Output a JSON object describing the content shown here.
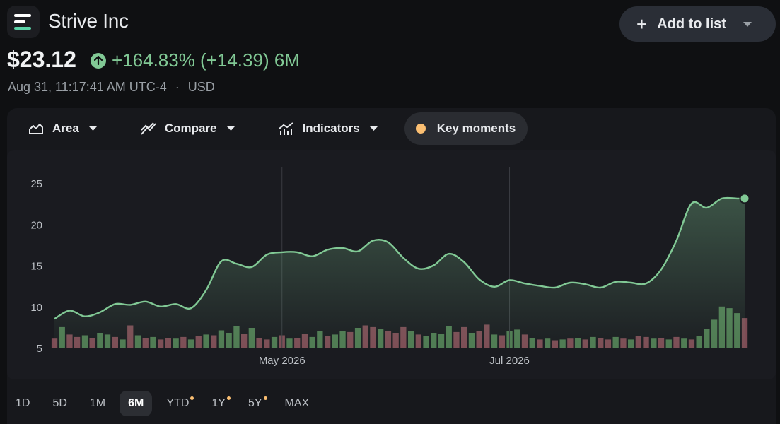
{
  "header": {
    "company": "Strive Inc",
    "add_label": "Add to list",
    "price": "$23.12",
    "change_text": "+164.83% (+14.39) 6M",
    "timestamp": "Aug 31, 11:17:41 AM UTC-4",
    "currency": "USD",
    "up_color": "#81c995"
  },
  "toolbar": {
    "items": [
      {
        "label": "Area",
        "icon": "area-chart-icon"
      },
      {
        "label": "Compare",
        "icon": "compare-icon"
      },
      {
        "label": "Indicators",
        "icon": "indicators-icon"
      }
    ],
    "key_moments": "Key moments"
  },
  "ranges": [
    {
      "label": "1D",
      "selected": false,
      "badge": false
    },
    {
      "label": "5D",
      "selected": false,
      "badge": false
    },
    {
      "label": "1M",
      "selected": false,
      "badge": false
    },
    {
      "label": "6M",
      "selected": true,
      "badge": false
    },
    {
      "label": "YTD",
      "selected": false,
      "badge": true
    },
    {
      "label": "1Y",
      "selected": false,
      "badge": true
    },
    {
      "label": "5Y",
      "selected": false,
      "badge": true
    },
    {
      "label": "MAX",
      "selected": false,
      "badge": false
    }
  ],
  "chart_data": {
    "type": "area",
    "title": "",
    "xlabel": "",
    "ylabel": "",
    "ylim": [
      5,
      25
    ],
    "yticks": [
      25,
      20,
      15,
      10,
      5
    ],
    "xticks": [
      {
        "label": "May 2026",
        "x": 60
      },
      {
        "label": "Jul 2026",
        "x": 120
      }
    ],
    "grid": false,
    "line_color": "#81c995",
    "volume_up_color": "#4f7a52",
    "volume_down_color": "#7d4c55",
    "x": [
      0,
      4,
      8,
      12,
      16,
      20,
      24,
      28,
      32,
      36,
      40,
      44,
      48,
      52,
      56,
      60,
      64,
      68,
      72,
      76,
      80,
      84,
      88,
      92,
      96,
      100,
      104,
      108,
      112,
      116,
      120,
      124,
      128,
      132,
      136,
      140,
      144,
      148,
      152,
      156,
      160,
      164,
      168,
      172,
      176,
      180,
      182
    ],
    "close": [
      8.5,
      9.5,
      8.8,
      9.3,
      10.3,
      10.2,
      10.6,
      10.0,
      10.3,
      9.8,
      12.0,
      15.5,
      15.2,
      14.8,
      16.3,
      16.6,
      16.6,
      16.1,
      16.9,
      17.1,
      16.7,
      18.0,
      17.8,
      15.9,
      14.6,
      15.0,
      16.4,
      15.4,
      13.3,
      12.4,
      13.2,
      12.8,
      12.5,
      12.3,
      12.9,
      12.7,
      12.3,
      13.0,
      12.9,
      12.8,
      14.5,
      18.0,
      22.5,
      22.0,
      23.12,
      23.12,
      23.12
    ],
    "volume": [
      {
        "x": 0,
        "v": 6.1,
        "up": false
      },
      {
        "x": 2,
        "v": 7.5,
        "up": true
      },
      {
        "x": 4,
        "v": 6.6,
        "up": false
      },
      {
        "x": 6,
        "v": 6.3,
        "up": false
      },
      {
        "x": 8,
        "v": 6.5,
        "up": true
      },
      {
        "x": 10,
        "v": 6.2,
        "up": false
      },
      {
        "x": 12,
        "v": 6.8,
        "up": true
      },
      {
        "x": 14,
        "v": 6.6,
        "up": true
      },
      {
        "x": 16,
        "v": 6.3,
        "up": false
      },
      {
        "x": 18,
        "v": 6.0,
        "up": true
      },
      {
        "x": 20,
        "v": 7.7,
        "up": false
      },
      {
        "x": 22,
        "v": 6.5,
        "up": true
      },
      {
        "x": 24,
        "v": 6.2,
        "up": false
      },
      {
        "x": 26,
        "v": 6.3,
        "up": true
      },
      {
        "x": 28,
        "v": 6.0,
        "up": false
      },
      {
        "x": 30,
        "v": 6.2,
        "up": false
      },
      {
        "x": 32,
        "v": 6.1,
        "up": true
      },
      {
        "x": 34,
        "v": 6.3,
        "up": false
      },
      {
        "x": 36,
        "v": 6.0,
        "up": true
      },
      {
        "x": 38,
        "v": 6.4,
        "up": false
      },
      {
        "x": 40,
        "v": 6.6,
        "up": true
      },
      {
        "x": 42,
        "v": 6.5,
        "up": false
      },
      {
        "x": 44,
        "v": 7.1,
        "up": true
      },
      {
        "x": 46,
        "v": 6.8,
        "up": true
      },
      {
        "x": 48,
        "v": 7.6,
        "up": true
      },
      {
        "x": 50,
        "v": 6.7,
        "up": false
      },
      {
        "x": 52,
        "v": 7.4,
        "up": true
      },
      {
        "x": 54,
        "v": 6.2,
        "up": false
      },
      {
        "x": 56,
        "v": 6.0,
        "up": false
      },
      {
        "x": 58,
        "v": 6.3,
        "up": true
      },
      {
        "x": 60,
        "v": 6.5,
        "up": false
      },
      {
        "x": 62,
        "v": 6.1,
        "up": true
      },
      {
        "x": 64,
        "v": 6.2,
        "up": false
      },
      {
        "x": 66,
        "v": 6.7,
        "up": false
      },
      {
        "x": 68,
        "v": 6.3,
        "up": true
      },
      {
        "x": 70,
        "v": 7.0,
        "up": true
      },
      {
        "x": 72,
        "v": 6.4,
        "up": false
      },
      {
        "x": 74,
        "v": 6.6,
        "up": true
      },
      {
        "x": 76,
        "v": 7.0,
        "up": true
      },
      {
        "x": 78,
        "v": 6.9,
        "up": false
      },
      {
        "x": 80,
        "v": 7.4,
        "up": true
      },
      {
        "x": 82,
        "v": 7.7,
        "up": false
      },
      {
        "x": 84,
        "v": 7.5,
        "up": false
      },
      {
        "x": 86,
        "v": 7.3,
        "up": true
      },
      {
        "x": 88,
        "v": 7.0,
        "up": false
      },
      {
        "x": 90,
        "v": 6.8,
        "up": false
      },
      {
        "x": 92,
        "v": 7.5,
        "up": false
      },
      {
        "x": 94,
        "v": 7.0,
        "up": true
      },
      {
        "x": 96,
        "v": 6.6,
        "up": false
      },
      {
        "x": 98,
        "v": 6.4,
        "up": true
      },
      {
        "x": 100,
        "v": 6.8,
        "up": true
      },
      {
        "x": 102,
        "v": 6.7,
        "up": true
      },
      {
        "x": 104,
        "v": 7.6,
        "up": true
      },
      {
        "x": 106,
        "v": 6.9,
        "up": false
      },
      {
        "x": 108,
        "v": 7.5,
        "up": false
      },
      {
        "x": 110,
        "v": 6.8,
        "up": true
      },
      {
        "x": 112,
        "v": 7.0,
        "up": false
      },
      {
        "x": 114,
        "v": 7.8,
        "up": false
      },
      {
        "x": 116,
        "v": 6.6,
        "up": true
      },
      {
        "x": 118,
        "v": 6.5,
        "up": false
      },
      {
        "x": 120,
        "v": 7.0,
        "up": true
      },
      {
        "x": 122,
        "v": 7.2,
        "up": true
      },
      {
        "x": 124,
        "v": 6.6,
        "up": false
      },
      {
        "x": 126,
        "v": 6.2,
        "up": true
      },
      {
        "x": 128,
        "v": 6.0,
        "up": false
      },
      {
        "x": 130,
        "v": 6.1,
        "up": true
      },
      {
        "x": 132,
        "v": 5.9,
        "up": false
      },
      {
        "x": 134,
        "v": 6.0,
        "up": true
      },
      {
        "x": 136,
        "v": 6.1,
        "up": false
      },
      {
        "x": 138,
        "v": 6.2,
        "up": true
      },
      {
        "x": 140,
        "v": 6.0,
        "up": false
      },
      {
        "x": 142,
        "v": 6.3,
        "up": true
      },
      {
        "x": 144,
        "v": 6.2,
        "up": false
      },
      {
        "x": 146,
        "v": 6.0,
        "up": false
      },
      {
        "x": 148,
        "v": 6.3,
        "up": true
      },
      {
        "x": 150,
        "v": 6.1,
        "up": false
      },
      {
        "x": 152,
        "v": 6.0,
        "up": true
      },
      {
        "x": 154,
        "v": 6.4,
        "up": false
      },
      {
        "x": 156,
        "v": 6.3,
        "up": false
      },
      {
        "x": 158,
        "v": 6.1,
        "up": true
      },
      {
        "x": 160,
        "v": 6.2,
        "up": false
      },
      {
        "x": 162,
        "v": 6.0,
        "up": true
      },
      {
        "x": 164,
        "v": 6.3,
        "up": false
      },
      {
        "x": 166,
        "v": 6.1,
        "up": true
      },
      {
        "x": 168,
        "v": 6.0,
        "up": false
      },
      {
        "x": 170,
        "v": 6.4,
        "up": true
      },
      {
        "x": 172,
        "v": 7.3,
        "up": true
      },
      {
        "x": 174,
        "v": 8.4,
        "up": true
      },
      {
        "x": 176,
        "v": 10.0,
        "up": true
      },
      {
        "x": 178,
        "v": 9.8,
        "up": true
      },
      {
        "x": 180,
        "v": 9.2,
        "up": true
      },
      {
        "x": 182,
        "v": 8.6,
        "up": false
      }
    ]
  }
}
